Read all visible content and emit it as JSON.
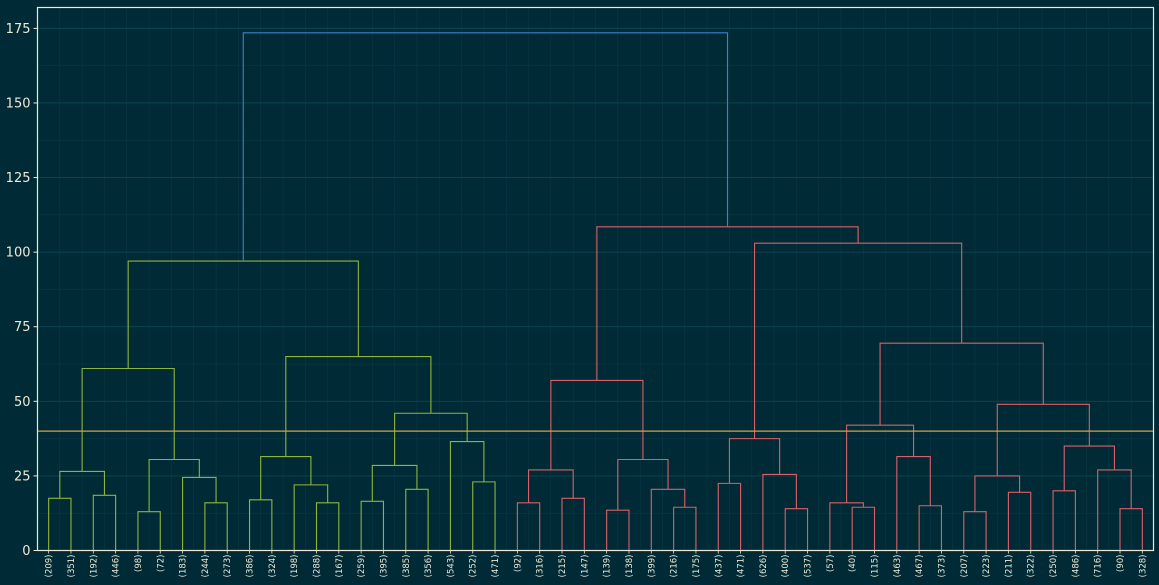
{
  "chart_data": {
    "type": "dendrogram",
    "title": "",
    "xlabel": "",
    "ylabel": "",
    "ylim": [
      0,
      182
    ],
    "yticks": [
      0,
      25,
      50,
      75,
      100,
      125,
      150,
      175
    ],
    "grid": true,
    "threshold": 40,
    "colors": {
      "background": "#002b36",
      "grid": "#0e4a56",
      "axis": "#eee8d5",
      "cluster_1": "#8fb43b",
      "cluster_2": "#d9606a",
      "root": "#3b83c8",
      "threshold": "#d9a041"
    },
    "leaves": [
      "(209)",
      "(351)",
      "(192)",
      "(446)",
      "(98)",
      "(72)",
      "(183)",
      "(244)",
      "(273)",
      "(386)",
      "(324)",
      "(198)",
      "(288)",
      "(167)",
      "(259)",
      "(395)",
      "(385)",
      "(356)",
      "(543)",
      "(252)",
      "(471)",
      "(92)",
      "(316)",
      "(215)",
      "(147)",
      "(139)",
      "(138)",
      "(399)",
      "(216)",
      "(175)",
      "(437)",
      "(471)",
      "(626)",
      "(400)",
      "(537)",
      "(57)",
      "(40)",
      "(115)",
      "(463)",
      "(467)",
      "(373)",
      "(207)",
      "(223)",
      "(211)",
      "(322)",
      "(250)",
      "(486)",
      "(716)",
      "(90)",
      "(328)"
    ],
    "merges": [
      {
        "a": 0,
        "b": 1,
        "h": 17.5,
        "c": "cluster_1"
      },
      {
        "a": 2,
        "b": 3,
        "h": 18.5,
        "c": "cluster_1"
      },
      {
        "a": 50,
        "b": 51,
        "h": 26.5,
        "c": "cluster_1"
      },
      {
        "a": 4,
        "b": 5,
        "h": 13,
        "c": "cluster_1"
      },
      {
        "a": 7,
        "b": 8,
        "h": 16,
        "c": "cluster_1"
      },
      {
        "a": 6,
        "b": 54,
        "h": 24.5,
        "c": "cluster_1"
      },
      {
        "a": 53,
        "b": 55,
        "h": 30.5,
        "c": "cluster_1"
      },
      {
        "a": 52,
        "b": 56,
        "h": 61,
        "c": "cluster_1"
      },
      {
        "a": 9,
        "b": 10,
        "h": 17,
        "c": "cluster_1"
      },
      {
        "a": 12,
        "b": 13,
        "h": 16,
        "c": "cluster_1"
      },
      {
        "a": 11,
        "b": 59,
        "h": 22,
        "c": "cluster_1"
      },
      {
        "a": 58,
        "b": 60,
        "h": 31.5,
        "c": "cluster_1"
      },
      {
        "a": 14,
        "b": 15,
        "h": 16.5,
        "c": "cluster_1"
      },
      {
        "a": 16,
        "b": 17,
        "h": 20.5,
        "c": "cluster_1"
      },
      {
        "a": 62,
        "b": 63,
        "h": 28.5,
        "c": "cluster_1"
      },
      {
        "a": 19,
        "b": 20,
        "h": 23,
        "c": "cluster_1"
      },
      {
        "a": 18,
        "b": 65,
        "h": 36.5,
        "c": "cluster_1"
      },
      {
        "a": 64,
        "b": 66,
        "h": 46,
        "c": "cluster_1"
      },
      {
        "a": 61,
        "b": 67,
        "h": 65,
        "c": "cluster_1"
      },
      {
        "a": 57,
        "b": 68,
        "h": 97,
        "c": "cluster_1"
      },
      {
        "a": 21,
        "b": 22,
        "h": 16,
        "c": "cluster_2"
      },
      {
        "a": 23,
        "b": 24,
        "h": 17.5,
        "c": "cluster_2"
      },
      {
        "a": 70,
        "b": 71,
        "h": 27,
        "c": "cluster_2"
      },
      {
        "a": 25,
        "b": 26,
        "h": 13.5,
        "c": "cluster_2"
      },
      {
        "a": 28,
        "b": 29,
        "h": 14.5,
        "c": "cluster_2"
      },
      {
        "a": 27,
        "b": 74,
        "h": 20.5,
        "c": "cluster_2"
      },
      {
        "a": 73,
        "b": 75,
        "h": 30.5,
        "c": "cluster_2"
      },
      {
        "a": 72,
        "b": 76,
        "h": 57,
        "c": "cluster_2"
      },
      {
        "a": 30,
        "b": 31,
        "h": 22.5,
        "c": "cluster_2"
      },
      {
        "a": 33,
        "b": 34,
        "h": 14,
        "c": "cluster_2"
      },
      {
        "a": 32,
        "b": 79,
        "h": 25.5,
        "c": "cluster_2"
      },
      {
        "a": 78,
        "b": 80,
        "h": 37.5,
        "c": "cluster_2"
      },
      {
        "a": 36,
        "b": 37,
        "h": 14.5,
        "c": "cluster_2"
      },
      {
        "a": 35,
        "b": 82,
        "h": 16,
        "c": "cluster_2"
      },
      {
        "a": 39,
        "b": 40,
        "h": 15,
        "c": "cluster_2"
      },
      {
        "a": 38,
        "b": 84,
        "h": 31.5,
        "c": "cluster_2"
      },
      {
        "a": 83,
        "b": 85,
        "h": 42,
        "c": "cluster_2"
      },
      {
        "a": 41,
        "b": 42,
        "h": 13,
        "c": "cluster_2"
      },
      {
        "a": 43,
        "b": 44,
        "h": 19.5,
        "c": "cluster_2"
      },
      {
        "a": 87,
        "b": 88,
        "h": 25,
        "c": "cluster_2"
      },
      {
        "a": 45,
        "b": 46,
        "h": 20,
        "c": "cluster_2"
      },
      {
        "a": 48,
        "b": 49,
        "h": 14,
        "c": "cluster_2"
      },
      {
        "a": 47,
        "b": 91,
        "h": 27,
        "c": "cluster_2"
      },
      {
        "a": 90,
        "b": 92,
        "h": 35,
        "c": "cluster_2"
      },
      {
        "a": 89,
        "b": 93,
        "h": 49,
        "c": "cluster_2"
      },
      {
        "a": 86,
        "b": 94,
        "h": 69.5,
        "c": "cluster_2"
      },
      {
        "a": 81,
        "b": 95,
        "h": 103,
        "c": "cluster_2"
      },
      {
        "a": 77,
        "b": 96,
        "h": 108.5,
        "c": "cluster_2"
      },
      {
        "a": 69,
        "b": 97,
        "h": 173.5,
        "c": "root"
      }
    ]
  }
}
